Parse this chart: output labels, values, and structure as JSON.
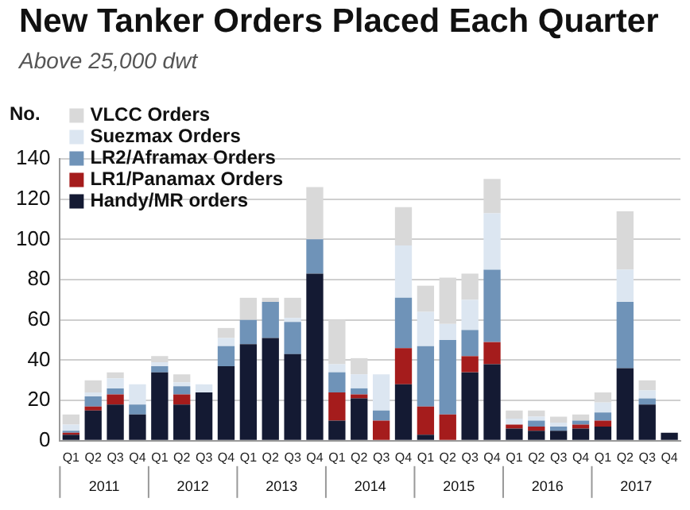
{
  "chart_data": {
    "type": "bar",
    "title": "New Tanker Orders Placed Each Quarter",
    "subtitle": "Above 25,000 dwt",
    "ylabel": "No.",
    "categories": [
      "Q1",
      "Q2",
      "Q3",
      "Q4",
      "Q1",
      "Q2",
      "Q3",
      "Q4",
      "Q1",
      "Q2",
      "Q3",
      "Q4",
      "Q1",
      "Q2",
      "Q3",
      "Q4",
      "Q1",
      "Q2",
      "Q3",
      "Q4",
      "Q1",
      "Q2",
      "Q3",
      "Q4",
      "Q1",
      "Q2",
      "Q3",
      "Q4"
    ],
    "annotations": [
      "2011",
      "2012",
      "2013",
      "2014",
      "2015",
      "2016",
      "2017"
    ],
    "stacked": true,
    "series": [
      {
        "name": "Handy/MR orders",
        "color": "#141a33",
        "values": [
          3,
          15,
          18,
          13,
          34,
          18,
          24,
          37,
          48,
          51,
          43,
          83,
          10,
          21,
          0,
          28,
          3,
          0,
          34,
          38,
          6,
          5,
          5,
          6,
          7,
          36,
          18,
          4
        ]
      },
      {
        "name": "LR1/Panamax Orders",
        "color": "#a51c1c",
        "values": [
          1,
          2,
          5,
          0,
          0,
          5,
          0,
          0,
          0,
          0,
          0,
          0,
          14,
          2,
          10,
          18,
          14,
          13,
          8,
          11,
          2,
          2,
          0,
          2,
          3,
          0,
          0,
          0
        ]
      },
      {
        "name": "LR2/Aframax Orders",
        "color": "#6f93b8",
        "values": [
          1,
          5,
          3,
          5,
          3,
          4,
          0,
          10,
          12,
          18,
          16,
          17,
          10,
          3,
          5,
          25,
          30,
          37,
          13,
          36,
          0,
          3,
          2,
          2,
          4,
          33,
          3,
          0
        ]
      },
      {
        "name": "Suezmax Orders",
        "color": "#dce6f1",
        "values": [
          3,
          2,
          5,
          10,
          2,
          2,
          4,
          4,
          0,
          null,
          2,
          0,
          4,
          7,
          18,
          26,
          17,
          8,
          15,
          28,
          3,
          2,
          2,
          null,
          5,
          16,
          4,
          0
        ]
      },
      {
        "name": "VLCC Orders",
        "color": "#d9d9d9",
        "values": [
          5,
          6,
          3,
          0,
          3,
          4,
          0,
          5,
          11,
          2,
          10,
          26,
          22,
          8,
          0,
          19,
          13,
          23,
          13,
          17,
          4,
          3,
          3,
          3,
          5,
          29,
          5,
          0
        ]
      }
    ],
    "ylim": [
      0,
      140
    ],
    "yticks": [
      0,
      20,
      40,
      60,
      80,
      100,
      120,
      140
    ],
    "grid": "y",
    "legend": "top left"
  }
}
